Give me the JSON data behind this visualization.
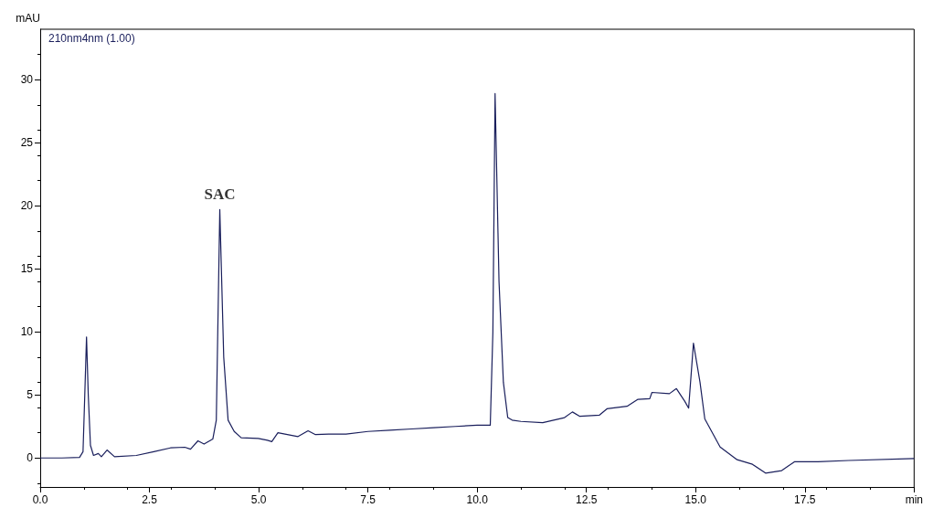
{
  "chart_data": {
    "type": "line",
    "ylabel": "mAU",
    "annotations": [
      {
        "text": "SAC",
        "x": 4.11,
        "y": 19.7
      }
    ],
    "xlim": [
      0,
      20
    ],
    "xticks": [
      {
        "value": 0,
        "label": "0.0"
      },
      {
        "value": 2.5,
        "label": "2.5"
      },
      {
        "value": 5,
        "label": "5.0"
      },
      {
        "value": 7.5,
        "label": "7.5"
      },
      {
        "value": 10,
        "label": "10.0"
      },
      {
        "value": 12.5,
        "label": "12.5"
      },
      {
        "value": 15,
        "label": "15.0"
      },
      {
        "value": 17.5,
        "label": "17.5"
      },
      {
        "value": 20,
        "label": "min"
      }
    ],
    "ylim": [
      -2.3,
      34
    ],
    "yticks": [
      0,
      5,
      10,
      15,
      20,
      25,
      30
    ],
    "grid": false,
    "legend": "top left",
    "marker": "none",
    "line_style": "solid",
    "series": [
      {
        "name": "210nm4nm (1.00)",
        "color": "#1a1f5c",
        "x": [
          0,
          0.5,
          0.9,
          0.98,
          1.02,
          1.06,
          1.1,
          1.15,
          1.22,
          1.33,
          1.4,
          1.53,
          1.7,
          2.2,
          2.6,
          2.98,
          3.31,
          3.44,
          3.61,
          3.75,
          3.95,
          4.03,
          4.11,
          4.2,
          4.3,
          4.44,
          4.6,
          4.99,
          5.2,
          5.3,
          5.44,
          5.9,
          6.13,
          6.3,
          6.6,
          7.0,
          7.5,
          8.0,
          8.5,
          9.0,
          9.5,
          10.0,
          10.3,
          10.36,
          10.41,
          10.5,
          10.6,
          10.7,
          10.8,
          11.0,
          11.5,
          12.0,
          12.18,
          12.35,
          12.8,
          12.97,
          13.43,
          13.68,
          13.95,
          14.0,
          14.4,
          14.56,
          14.75,
          14.84,
          14.95,
          15.1,
          15.21,
          15.56,
          15.95,
          16.3,
          16.6,
          16.97,
          17.26,
          17.8,
          18.5,
          20
        ],
        "values": [
          0,
          0,
          0.05,
          0.5,
          5,
          9.6,
          5,
          1,
          0.2,
          0.35,
          0.1,
          0.63,
          0.1,
          0.2,
          0.5,
          0.8,
          0.85,
          0.7,
          1.36,
          1.1,
          1.5,
          3,
          19.7,
          8,
          3,
          2.1,
          1.6,
          1.55,
          1.4,
          1.3,
          2.0,
          1.7,
          2.15,
          1.85,
          1.9,
          1.9,
          2.1,
          2.2,
          2.3,
          2.4,
          2.5,
          2.6,
          2.6,
          10,
          28.9,
          14,
          6,
          3.2,
          3,
          2.9,
          2.8,
          3.2,
          3.65,
          3.3,
          3.4,
          3.9,
          4.1,
          4.65,
          4.7,
          5.2,
          5.1,
          5.5,
          4.5,
          3.95,
          9.1,
          6,
          3.1,
          0.87,
          -0.14,
          -0.5,
          -1.2,
          -1.0,
          -0.3,
          -0.3,
          -0.2,
          -0.05
        ]
      }
    ]
  }
}
